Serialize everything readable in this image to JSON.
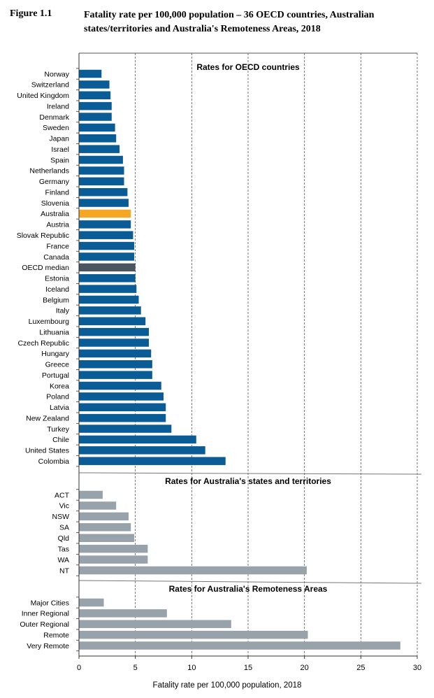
{
  "figure": {
    "label": "Figure 1.1",
    "title": "Fatality rate per 100,000 population – 36 OECD countries, Australian states/territories and Australia's Remoteness Areas, 2018"
  },
  "colors": {
    "oecd": "#0a5c96",
    "australia": "#f5a623",
    "median": "#4a5560",
    "states": "#98a2ab",
    "remoteness": "#98a2ab"
  },
  "chart_data": {
    "type": "bar",
    "orientation": "horizontal",
    "xlabel": "Fatality rate per 100,000 population, 2018",
    "xlim": [
      0,
      30
    ],
    "xticks": [
      0,
      5,
      10,
      15,
      20,
      25,
      30
    ],
    "grid": "vertical dashed",
    "panels": [
      {
        "title": "Rates for OECD countries",
        "key": "oecd",
        "categories": [
          "Norway",
          "Switzerland",
          "United Kingdom",
          "Ireland",
          "Denmark",
          "Sweden",
          "Japan",
          "Israel",
          "Spain",
          "Netherlands",
          "Germany",
          "Finland",
          "Slovenia",
          "Australia",
          "Austria",
          "Slovak Republic",
          "France",
          "Canada",
          "OECD median",
          "Estonia",
          "Iceland",
          "Belgium",
          "Italy",
          "Luxembourg",
          "Lithuania",
          "Czech Republic",
          "Hungary",
          "Greece",
          "Portugal",
          "Korea",
          "Poland",
          "Latvia",
          "New Zealand",
          "Turkey",
          "Chile",
          "United States",
          "Colombia"
        ],
        "values": [
          2.0,
          2.7,
          2.8,
          2.9,
          2.9,
          3.2,
          3.3,
          3.6,
          3.9,
          4.0,
          4.0,
          4.3,
          4.4,
          4.6,
          4.6,
          4.8,
          4.9,
          4.9,
          5.0,
          5.0,
          5.1,
          5.3,
          5.5,
          5.9,
          6.2,
          6.2,
          6.4,
          6.5,
          6.5,
          7.3,
          7.5,
          7.7,
          7.7,
          8.2,
          10.4,
          11.2,
          13.0
        ]
      },
      {
        "title": "Rates for Australia's states and territories",
        "key": "states",
        "categories": [
          "ACT",
          "Vic",
          "NSW",
          "SA",
          "Qld",
          "Tas",
          "WA",
          "NT"
        ],
        "values": [
          2.1,
          3.3,
          4.4,
          4.6,
          4.9,
          6.1,
          6.1,
          20.2
        ]
      },
      {
        "title": "Rates for Australia's Remoteness Areas",
        "key": "remoteness",
        "categories": [
          "Major Cities",
          "Inner Regional",
          "Outer Regional",
          "Remote",
          "Very Remote"
        ],
        "values": [
          2.2,
          7.8,
          13.5,
          20.3,
          28.5
        ]
      }
    ]
  }
}
